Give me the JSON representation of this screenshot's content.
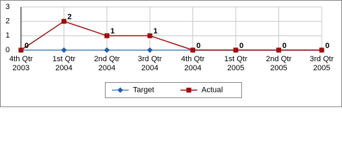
{
  "chart_data": {
    "type": "line",
    "categories": [
      [
        "4th Qtr",
        "2003"
      ],
      [
        "1st Qtr",
        "2004"
      ],
      [
        "2nd Qtr",
        "2004"
      ],
      [
        "3rd Qtr",
        "2004"
      ],
      [
        "4th Qtr",
        "2004"
      ],
      [
        "1st Qtr",
        "2005"
      ],
      [
        "2nd Qtr",
        "2005"
      ],
      [
        "3rd Qtr",
        "2005"
      ]
    ],
    "series": [
      {
        "name": "Target",
        "color": "#1f5fae",
        "values": [
          0,
          0,
          0,
          0,
          0,
          0,
          0,
          0
        ]
      },
      {
        "name": "Actual",
        "color": "#a01010",
        "values": [
          0,
          2,
          1,
          1,
          0,
          0,
          0,
          0
        ],
        "data_labels": true
      }
    ],
    "ylim": [
      0,
      3
    ],
    "yticks": [
      0,
      1,
      2,
      3
    ],
    "grid": true,
    "legend": "bottom"
  }
}
